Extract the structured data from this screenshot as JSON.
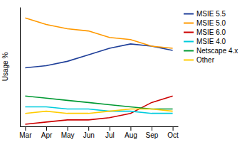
{
  "chart_data": {
    "type": "line",
    "categories": [
      "Mar",
      "Apr",
      "May",
      "Jun",
      "Jul",
      "Aug",
      "Sep",
      "Oct"
    ],
    "series": [
      {
        "name": "MSIE 5.5",
        "color": "#1f3f99",
        "values": [
          27,
          28,
          30,
          33,
          36,
          38,
          37,
          35
        ]
      },
      {
        "name": "MSIE 5.0",
        "color": "#ff9900",
        "values": [
          50,
          47,
          45,
          44,
          41,
          40,
          37,
          36
        ]
      },
      {
        "name": "MSIE 6.0",
        "color": "#cc0000",
        "values": [
          1,
          2,
          3,
          3,
          4,
          6,
          11,
          14
        ]
      },
      {
        "name": "MSIE 4.0",
        "color": "#00ccdd",
        "values": [
          9,
          9,
          8,
          8,
          7,
          7,
          6,
          6
        ]
      },
      {
        "name": "Netscape 4.x",
        "color": "#009933",
        "values": [
          14,
          13,
          12,
          11,
          10,
          9,
          8,
          8
        ]
      },
      {
        "name": "Other",
        "color": "#ffcc00",
        "values": [
          6,
          7,
          6,
          6,
          7,
          8,
          8,
          7
        ]
      }
    ],
    "ylabel": "Usage %",
    "ylim": [
      0,
      55
    ],
    "tick_labels": "x",
    "legend": "upper right"
  }
}
